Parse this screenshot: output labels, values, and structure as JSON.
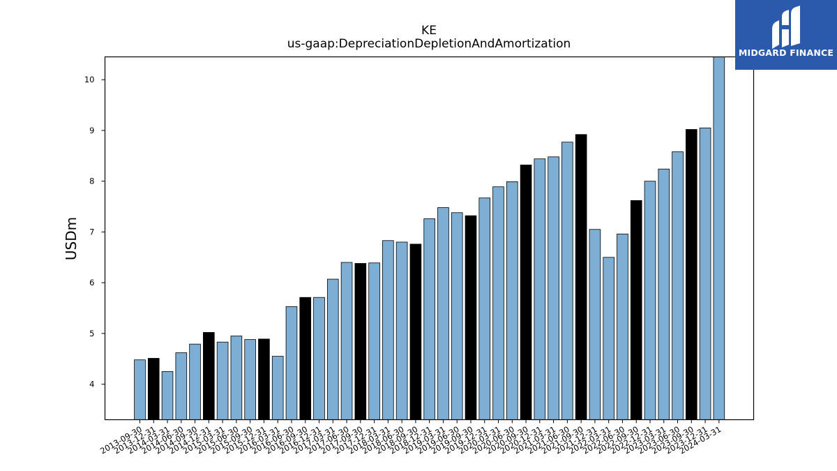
{
  "chart_data": {
    "type": "bar",
    "title": "KE",
    "subtitle": "us-gaap:DepreciationDepletionAndAmortization",
    "xlabel": "",
    "ylabel": "USDm",
    "ylim": [
      3.3,
      10.45
    ],
    "yticks": [
      4,
      5,
      6,
      7,
      8,
      9,
      10
    ],
    "grid": false,
    "colors": {
      "quarter": "#7eaed3",
      "year_end": "#000000",
      "edge": "#000000"
    },
    "categories": [
      "2013-09-30",
      "2013-12-31",
      "2014-03-31",
      "2014-06-30",
      "2014-09-30",
      "2014-12-31",
      "2015-03-31",
      "2015-06-30",
      "2015-09-30",
      "2015-12-31",
      "2016-03-31",
      "2016-06-30",
      "2016-09-30",
      "2016-12-31",
      "2017-03-31",
      "2017-06-30",
      "2017-09-30",
      "2017-12-31",
      "2018-03-31",
      "2018-06-30",
      "2018-09-30",
      "2018-12-31",
      "2019-03-31",
      "2019-06-30",
      "2019-09-30",
      "2019-12-31",
      "2020-03-31",
      "2020-06-30",
      "2020-09-30",
      "2020-12-31",
      "2021-03-31",
      "2021-06-30",
      "2021-09-30",
      "2021-12-31",
      "2022-03-31",
      "2022-06-30",
      "2022-09-30",
      "2022-12-31",
      "2023-03-31",
      "2023-06-30",
      "2023-09-30",
      "2023-12-31",
      "2024-03-31"
    ],
    "values": [
      4.48,
      4.51,
      4.25,
      4.62,
      4.79,
      5.02,
      4.83,
      4.95,
      4.88,
      4.89,
      4.55,
      5.53,
      5.71,
      5.71,
      6.07,
      6.4,
      6.38,
      6.39,
      6.83,
      6.8,
      6.76,
      7.26,
      7.48,
      7.38,
      7.32,
      7.67,
      7.89,
      7.99,
      8.32,
      8.44,
      8.48,
      8.77,
      8.92,
      7.05,
      6.5,
      6.96,
      7.62,
      8.0,
      8.24,
      8.58,
      9.02,
      9.05,
      10.45
    ],
    "year_end_flags": [
      false,
      true,
      false,
      false,
      false,
      true,
      false,
      false,
      false,
      true,
      false,
      false,
      true,
      false,
      false,
      false,
      true,
      false,
      false,
      false,
      true,
      false,
      false,
      false,
      true,
      false,
      false,
      false,
      true,
      false,
      false,
      false,
      true,
      false,
      false,
      false,
      true,
      false,
      false,
      false,
      true,
      false,
      false
    ]
  },
  "logo": {
    "text": "MIDGARD FINANCE",
    "icon": "midgard-logo-icon",
    "bg_color": "#2b5aac"
  }
}
